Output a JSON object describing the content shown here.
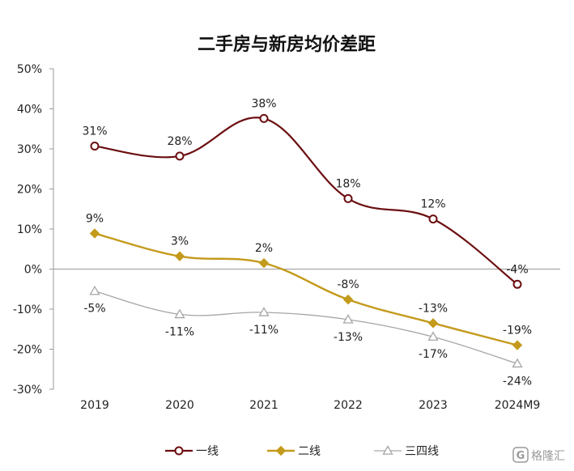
{
  "chart_data": {
    "type": "line",
    "title": "二手房与新房均价差距",
    "xlabel": "",
    "ylabel": "",
    "categories": [
      "2019",
      "2020",
      "2021",
      "2022",
      "2023",
      "2024M9"
    ],
    "ylim": [
      -30,
      50
    ],
    "yticks": [
      50,
      40,
      30,
      20,
      10,
      0,
      -10,
      -20,
      -30
    ],
    "ytick_labels": [
      "50%",
      "40%",
      "30%",
      "20%",
      "10%",
      "0%",
      "-10%",
      "-20%",
      "-30%"
    ],
    "grid": false,
    "legend_position": "bottom",
    "series": [
      {
        "name": "一线",
        "color": "#6b0e10",
        "marker": "circle-open",
        "values": [
          31,
          28,
          38,
          18,
          12,
          -4
        ],
        "plot_values": [
          30.7,
          28.2,
          37.6,
          17.6,
          12.5,
          -3.8
        ],
        "labels": [
          "31%",
          "28%",
          "38%",
          "18%",
          "12%",
          "-4%"
        ]
      },
      {
        "name": "二线",
        "color": "#c49a1c",
        "marker": "diamond",
        "values": [
          9,
          3,
          2,
          -8,
          -13,
          -19
        ],
        "plot_values": [
          8.9,
          3.2,
          1.5,
          -7.6,
          -13.5,
          -19.0
        ],
        "labels": [
          "9%",
          "3%",
          "2%",
          "-8%",
          "-13%",
          "-19%"
        ]
      },
      {
        "name": "三四线",
        "color": "#a6a6a6",
        "marker": "triangle-open",
        "values": [
          -5,
          -11,
          -11,
          -13,
          -17,
          -24
        ],
        "plot_values": [
          -5.5,
          -11.3,
          -10.8,
          -12.6,
          -16.9,
          -23.6
        ],
        "labels": [
          "-5%",
          "-11%",
          "-11%",
          "-13%",
          "-17%",
          "-24%"
        ]
      }
    ]
  },
  "watermark": {
    "text": "格隆汇",
    "icon": "logo-g-icon"
  }
}
